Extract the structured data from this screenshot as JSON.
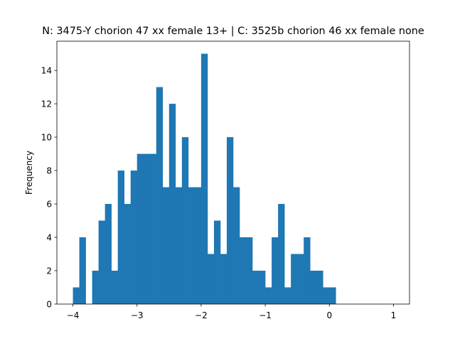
{
  "chart_data": {
    "type": "bar",
    "title": "N: 3475-Y chorion 47 xx female 13+ | C: 3525b chorion 46 xx female none",
    "xlabel": "",
    "ylabel": "Frequency",
    "xlim": [
      -4.25,
      1.25
    ],
    "ylim": [
      0,
      15.75
    ],
    "x_ticks": [
      -4,
      -3,
      -2,
      -1,
      0,
      1
    ],
    "x_tick_labels": [
      "−4",
      "−3",
      "−2",
      "−1",
      "0",
      "1"
    ],
    "y_ticks": [
      0,
      2,
      4,
      6,
      8,
      10,
      12,
      14
    ],
    "y_tick_labels": [
      "0",
      "2",
      "4",
      "6",
      "8",
      "10",
      "12",
      "14"
    ],
    "bar_color": "#1f77b4",
    "grid": false,
    "legend": "none",
    "bin_width": 0.1,
    "bin_starts": [
      -4.0,
      -3.9,
      -3.8,
      -3.7,
      -3.6,
      -3.5,
      -3.4,
      -3.3,
      -3.2,
      -3.1,
      -3.0,
      -2.9,
      -2.8,
      -2.7,
      -2.6,
      -2.5,
      -2.4,
      -2.3,
      -2.2,
      -2.1,
      -2.0,
      -1.9,
      -1.8,
      -1.7,
      -1.6,
      -1.5,
      -1.4,
      -1.3,
      -1.2,
      -1.1,
      -1.0,
      -0.9,
      -0.8,
      -0.7,
      -0.6,
      -0.5,
      -0.4,
      -0.3,
      -0.2,
      -0.1,
      0.0
    ],
    "values": [
      1,
      4,
      0,
      2,
      5,
      6,
      2,
      8,
      6,
      8,
      9,
      9,
      9,
      13,
      7,
      12,
      7,
      10,
      7,
      7,
      15,
      3,
      5,
      3,
      10,
      7,
      4,
      4,
      2,
      2,
      1,
      4,
      6,
      1,
      3,
      3,
      4,
      2,
      2,
      1,
      1
    ]
  }
}
